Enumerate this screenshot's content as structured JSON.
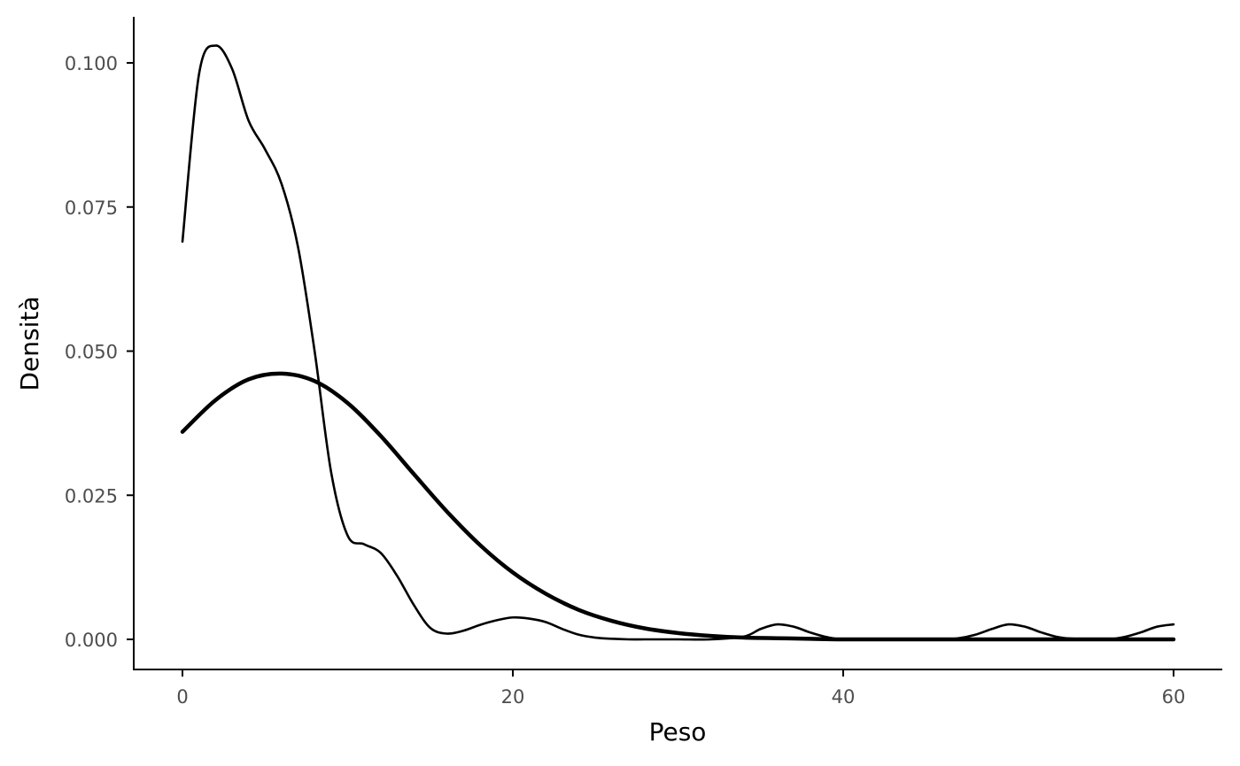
{
  "chart_data": {
    "type": "line",
    "title": "",
    "xlabel": "Peso",
    "ylabel": "Densità",
    "xlim": [
      -3,
      63
    ],
    "ylim": [
      -0.005,
      0.108
    ],
    "x_ticks": [
      0,
      20,
      40,
      60
    ],
    "x_tick_labels": [
      "0",
      "20",
      "40",
      "60"
    ],
    "y_ticks": [
      0,
      0.025,
      0.05,
      0.075,
      0.1
    ],
    "y_tick_labels": [
      "0.000",
      "0.025",
      "0.050",
      "0.075",
      "0.100"
    ],
    "grid": false,
    "legend": "none",
    "series": [
      {
        "style": "thin",
        "color": "#000000",
        "x": [
          0,
          1,
          2,
          3,
          4,
          5,
          6,
          7,
          8,
          9,
          10,
          11,
          12,
          13,
          14,
          15,
          16,
          17,
          18,
          19,
          20,
          21,
          22,
          23,
          24,
          25,
          26,
          27,
          28,
          30,
          32,
          34,
          35,
          36,
          37,
          38,
          39,
          40,
          42,
          44,
          46,
          47,
          48,
          49,
          50,
          51,
          52,
          53,
          54,
          56,
          57,
          58,
          59,
          60
        ],
        "y": [
          0.069,
          0.098,
          0.103,
          0.099,
          0.09,
          0.085,
          0.079,
          0.068,
          0.05,
          0.029,
          0.018,
          0.0165,
          0.015,
          0.011,
          0.006,
          0.002,
          0.001,
          0.0015,
          0.0025,
          0.0033,
          0.0038,
          0.0036,
          0.003,
          0.0018,
          0.0008,
          0.0003,
          0.0001,
          0.0,
          0.0,
          0.0,
          0.0,
          0.0005,
          0.0018,
          0.0026,
          0.0022,
          0.0012,
          0.0004,
          0.0,
          0.0,
          0.0,
          0.0,
          0.0002,
          0.0008,
          0.0018,
          0.0026,
          0.0022,
          0.0012,
          0.0004,
          0.0001,
          0.0,
          0.0004,
          0.0012,
          0.0022,
          0.0026
        ]
      },
      {
        "style": "thick",
        "color": "#000000",
        "x": [
          0,
          2,
          4,
          6,
          8,
          10,
          12,
          14,
          16,
          18,
          20,
          22,
          24,
          26,
          28,
          30,
          32,
          34,
          36,
          38,
          40,
          45,
          50,
          55,
          60
        ],
        "y": [
          0.036,
          0.0415,
          0.0451,
          0.0461,
          0.0448,
          0.041,
          0.0353,
          0.0287,
          0.0222,
          0.0164,
          0.0116,
          0.0079,
          0.0051,
          0.0032,
          0.0019,
          0.0011,
          0.0006,
          0.0003,
          0.0002,
          0.0001,
          0.0,
          0.0,
          0.0,
          0.0,
          0.0
        ]
      }
    ]
  }
}
